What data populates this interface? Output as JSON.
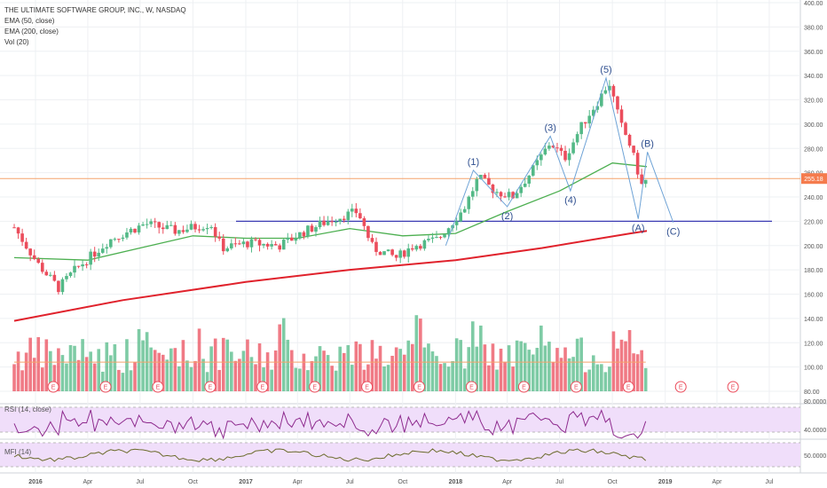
{
  "legend": {
    "title": "THE ULTIMATE SOFTWARE GROUP, INC., W, NASDAQ",
    "ema50": "EMA (50, close)",
    "ema200": "EMA (200, close)",
    "vol": "Vol (20)"
  },
  "panes": {
    "rsi_label": "RSI (14, close)",
    "mfi_label": "MFI (14)"
  },
  "colors": {
    "up": "#53b987",
    "down": "#eb4d5c",
    "ema50": "#4caf50",
    "ema200": "#e0222c",
    "level_line": "#3b3bb3",
    "wave": "#6ea3d6",
    "price_line": "#f5a26b",
    "price_badge": "#f57b4d",
    "rsi_band": "#f0defa",
    "rsi_line": "#8e2b8e",
    "mfi_line": "#6b6b2b",
    "vol_ma": "#f5a26b"
  },
  "chart_data": {
    "type": "candlestick",
    "timeframe": "W",
    "x_ticks": [
      "2016",
      "Apr",
      "Jul",
      "Oct",
      "2017",
      "Apr",
      "Jul",
      "Oct",
      "2018",
      "Apr",
      "Jul",
      "Oct",
      "2019",
      "Apr",
      "Jul"
    ],
    "y_ticks": [
      "400.00",
      "380.00",
      "360.00",
      "340.00",
      "320.00",
      "300.00",
      "280.00",
      "260.00",
      "240.00",
      "220.00",
      "200.00",
      "180.00",
      "160.00",
      "140.00",
      "120.00",
      "100.00",
      "80.00"
    ],
    "ylim": [
      80,
      400
    ],
    "last_price": "255.18",
    "horizontal_level": 220,
    "elliott_wave_labels": [
      "(1)",
      "(2)",
      "(3)",
      "(4)",
      "(5)",
      "(A)",
      "(B)",
      "(C)"
    ],
    "elliott_wave_points": [
      {
        "label": "(1)",
        "date": "2018-02-01",
        "price": 262
      },
      {
        "label": "(2)",
        "date": "2018-04-01",
        "price": 232
      },
      {
        "label": "(3)",
        "date": "2018-06-15",
        "price": 290
      },
      {
        "label": "(4)",
        "date": "2018-07-20",
        "price": 245
      },
      {
        "label": "(5)",
        "date": "2018-09-20",
        "price": 338
      },
      {
        "label": "(A)",
        "date": "2018-11-15",
        "price": 222
      },
      {
        "label": "(B)",
        "date": "2018-12-01",
        "price": 277
      },
      {
        "label": "(C)",
        "date": "2019-01-15",
        "price": 219
      }
    ],
    "earnings_marker": "E",
    "earnings_count": 14,
    "rsi_ticks": [
      "80.0000",
      "40.0000"
    ],
    "mfi_ticks": [
      "50.0000"
    ],
    "price_anchors": [
      [
        "2015-11-25",
        215
      ],
      [
        "2016-01-05",
        185
      ],
      [
        "2016-02-10",
        165
      ],
      [
        "2016-03-10",
        180
      ],
      [
        "2016-05-10",
        205
      ],
      [
        "2016-07-10",
        218
      ],
      [
        "2016-09-01",
        212
      ],
      [
        "2016-11-01",
        218
      ],
      [
        "2016-11-20",
        198
      ],
      [
        "2017-01-05",
        202
      ],
      [
        "2017-03-01",
        200
      ],
      [
        "2017-04-15",
        212
      ],
      [
        "2017-06-01",
        222
      ],
      [
        "2017-07-15",
        228
      ],
      [
        "2017-08-10",
        198
      ],
      [
        "2017-09-20",
        190
      ],
      [
        "2017-10-20",
        200
      ],
      [
        "2017-12-01",
        205
      ],
      [
        "2018-01-15",
        230
      ],
      [
        "2018-02-10",
        256
      ],
      [
        "2018-03-10",
        245
      ],
      [
        "2018-04-10",
        240
      ],
      [
        "2018-05-15",
        262
      ],
      [
        "2018-06-15",
        285
      ],
      [
        "2018-07-10",
        272
      ],
      [
        "2018-08-10",
        300
      ],
      [
        "2018-09-10",
        322
      ],
      [
        "2018-09-25",
        335
      ],
      [
        "2018-10-15",
        300
      ],
      [
        "2018-10-30",
        285
      ],
      [
        "2018-11-10",
        268
      ],
      [
        "2018-11-22",
        248
      ],
      [
        "2018-11-30",
        255
      ]
    ],
    "ema50_anchors": [
      [
        "2015-11-25",
        190
      ],
      [
        "2016-04-01",
        188
      ],
      [
        "2016-07-01",
        198
      ],
      [
        "2016-10-01",
        208
      ],
      [
        "2017-01-01",
        206
      ],
      [
        "2017-04-01",
        206
      ],
      [
        "2017-07-01",
        214
      ],
      [
        "2017-10-01",
        208
      ],
      [
        "2018-01-01",
        210
      ],
      [
        "2018-04-01",
        228
      ],
      [
        "2018-07-01",
        245
      ],
      [
        "2018-10-01",
        268
      ],
      [
        "2018-11-30",
        265
      ]
    ],
    "ema200_anchors": [
      [
        "2015-11-25",
        138
      ],
      [
        "2016-06-01",
        155
      ],
      [
        "2017-01-01",
        170
      ],
      [
        "2017-07-01",
        180
      ],
      [
        "2018-01-01",
        188
      ],
      [
        "2018-06-01",
        198
      ],
      [
        "2018-11-01",
        210
      ],
      [
        "2018-11-30",
        212
      ]
    ]
  }
}
